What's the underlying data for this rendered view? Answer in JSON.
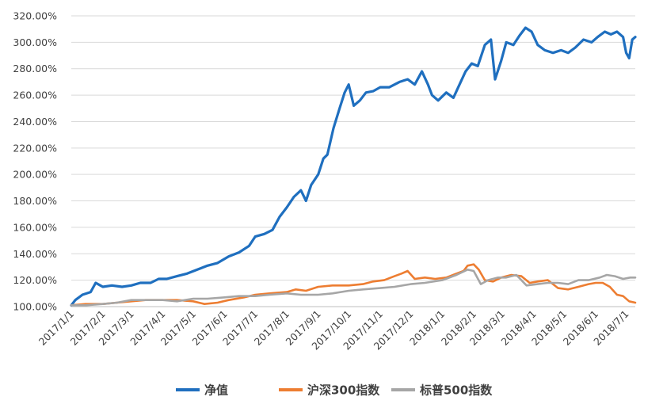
{
  "chart_data": {
    "type": "line",
    "title": "",
    "xlabel": "",
    "ylabel": "",
    "ylim": [
      100,
      320
    ],
    "y_ticks": [
      100,
      120,
      140,
      160,
      180,
      200,
      220,
      240,
      260,
      280,
      300,
      320
    ],
    "y_tick_labels": [
      "100.00%",
      "120.00%",
      "140.00%",
      "160.00%",
      "180.00%",
      "200.00%",
      "220.00%",
      "240.00%",
      "260.00%",
      "280.00%",
      "300.00%",
      "320.00%"
    ],
    "x_tick_labels": [
      "2017/1/1",
      "2017/2/1",
      "2017/3/1",
      "2017/4/1",
      "2017/5/1",
      "2017/6/1",
      "2017/7/1",
      "2017/8/1",
      "2017/9/1",
      "2017/10/1",
      "2017/11/1",
      "2017/12/1",
      "2018/1/1",
      "2018/2/1",
      "2018/3/1",
      "2018/4/1",
      "2018/5/1",
      "2018/6/1",
      "2018/7/1"
    ],
    "x_range": [
      "2017-01-01",
      "2018-07-10"
    ],
    "grid": "horizontal",
    "legend_position": "bottom",
    "series": [
      {
        "name": "净值",
        "color": "#1f6fbf",
        "points": [
          [
            "2017-01-01",
            101
          ],
          [
            "2017-01-05",
            105
          ],
          [
            "2017-01-12",
            109
          ],
          [
            "2017-01-20",
            111
          ],
          [
            "2017-01-25",
            118
          ],
          [
            "2017-02-01",
            115
          ],
          [
            "2017-02-10",
            116
          ],
          [
            "2017-02-20",
            115
          ],
          [
            "2017-03-01",
            116
          ],
          [
            "2017-03-10",
            118
          ],
          [
            "2017-03-20",
            118
          ],
          [
            "2017-03-28",
            121
          ],
          [
            "2017-04-05",
            121
          ],
          [
            "2017-04-15",
            123
          ],
          [
            "2017-04-25",
            125
          ],
          [
            "2017-05-05",
            128
          ],
          [
            "2017-05-15",
            131
          ],
          [
            "2017-05-25",
            133
          ],
          [
            "2017-06-05",
            138
          ],
          [
            "2017-06-15",
            141
          ],
          [
            "2017-06-25",
            146
          ],
          [
            "2017-07-01",
            153
          ],
          [
            "2017-07-10",
            155
          ],
          [
            "2017-07-18",
            158
          ],
          [
            "2017-07-25",
            168
          ],
          [
            "2017-08-01",
            175
          ],
          [
            "2017-08-08",
            183
          ],
          [
            "2017-08-15",
            188
          ],
          [
            "2017-08-20",
            180
          ],
          [
            "2017-08-25",
            192
          ],
          [
            "2017-09-01",
            200
          ],
          [
            "2017-09-06",
            212
          ],
          [
            "2017-09-10",
            215
          ],
          [
            "2017-09-16",
            235
          ],
          [
            "2017-09-22",
            250
          ],
          [
            "2017-09-27",
            262
          ],
          [
            "2017-10-01",
            268
          ],
          [
            "2017-10-06",
            252
          ],
          [
            "2017-10-12",
            256
          ],
          [
            "2017-10-18",
            262
          ],
          [
            "2017-10-25",
            263
          ],
          [
            "2017-11-01",
            266
          ],
          [
            "2017-11-10",
            266
          ],
          [
            "2017-11-20",
            270
          ],
          [
            "2017-11-28",
            272
          ],
          [
            "2017-12-05",
            268
          ],
          [
            "2017-12-12",
            278
          ],
          [
            "2017-12-18",
            268
          ],
          [
            "2017-12-22",
            260
          ],
          [
            "2017-12-28",
            256
          ],
          [
            "2018-01-05",
            262
          ],
          [
            "2018-01-12",
            258
          ],
          [
            "2018-01-18",
            268
          ],
          [
            "2018-01-24",
            278
          ],
          [
            "2018-01-30",
            284
          ],
          [
            "2018-02-05",
            282
          ],
          [
            "2018-02-12",
            298
          ],
          [
            "2018-02-18",
            302
          ],
          [
            "2018-02-22",
            272
          ],
          [
            "2018-02-28",
            286
          ],
          [
            "2018-03-05",
            300
          ],
          [
            "2018-03-12",
            298
          ],
          [
            "2018-03-18",
            305
          ],
          [
            "2018-03-24",
            311
          ],
          [
            "2018-03-30",
            308
          ],
          [
            "2018-04-05",
            298
          ],
          [
            "2018-04-12",
            294
          ],
          [
            "2018-04-20",
            292
          ],
          [
            "2018-04-28",
            294
          ],
          [
            "2018-05-05",
            292
          ],
          [
            "2018-05-12",
            296
          ],
          [
            "2018-05-20",
            302
          ],
          [
            "2018-05-28",
            300
          ],
          [
            "2018-06-03",
            304
          ],
          [
            "2018-06-10",
            308
          ],
          [
            "2018-06-16",
            306
          ],
          [
            "2018-06-22",
            308
          ],
          [
            "2018-06-28",
            304
          ],
          [
            "2018-07-01",
            292
          ],
          [
            "2018-07-04",
            288
          ],
          [
            "2018-07-07",
            302
          ],
          [
            "2018-07-10",
            304
          ]
        ]
      },
      {
        "name": "沪深300指数",
        "color": "#ed7d31",
        "points": [
          [
            "2017-01-01",
            101
          ],
          [
            "2017-01-15",
            102
          ],
          [
            "2017-02-01",
            102
          ],
          [
            "2017-02-15",
            103
          ],
          [
            "2017-03-01",
            104
          ],
          [
            "2017-03-15",
            105
          ],
          [
            "2017-04-01",
            105
          ],
          [
            "2017-04-15",
            105
          ],
          [
            "2017-05-01",
            104
          ],
          [
            "2017-05-12",
            102
          ],
          [
            "2017-05-25",
            103
          ],
          [
            "2017-06-05",
            105
          ],
          [
            "2017-06-20",
            107
          ],
          [
            "2017-07-01",
            109
          ],
          [
            "2017-07-15",
            110
          ],
          [
            "2017-08-01",
            111
          ],
          [
            "2017-08-10",
            113
          ],
          [
            "2017-08-20",
            112
          ],
          [
            "2017-09-01",
            115
          ],
          [
            "2017-09-15",
            116
          ],
          [
            "2017-10-01",
            116
          ],
          [
            "2017-10-15",
            117
          ],
          [
            "2017-10-25",
            119
          ],
          [
            "2017-11-05",
            120
          ],
          [
            "2017-11-15",
            123
          ],
          [
            "2017-11-22",
            125
          ],
          [
            "2017-11-28",
            127
          ],
          [
            "2017-12-05",
            121
          ],
          [
            "2017-12-15",
            122
          ],
          [
            "2017-12-25",
            121
          ],
          [
            "2018-01-05",
            122
          ],
          [
            "2018-01-15",
            125
          ],
          [
            "2018-01-22",
            127
          ],
          [
            "2018-01-26",
            131
          ],
          [
            "2018-02-01",
            132
          ],
          [
            "2018-02-06",
            128
          ],
          [
            "2018-02-12",
            120
          ],
          [
            "2018-02-20",
            119
          ],
          [
            "2018-02-28",
            122
          ],
          [
            "2018-03-10",
            124
          ],
          [
            "2018-03-20",
            123
          ],
          [
            "2018-03-28",
            118
          ],
          [
            "2018-04-05",
            119
          ],
          [
            "2018-04-15",
            120
          ],
          [
            "2018-04-25",
            114
          ],
          [
            "2018-05-05",
            113
          ],
          [
            "2018-05-15",
            115
          ],
          [
            "2018-05-25",
            117
          ],
          [
            "2018-06-01",
            118
          ],
          [
            "2018-06-08",
            118
          ],
          [
            "2018-06-15",
            115
          ],
          [
            "2018-06-22",
            109
          ],
          [
            "2018-06-28",
            108
          ],
          [
            "2018-07-04",
            104
          ],
          [
            "2018-07-10",
            103
          ]
        ]
      },
      {
        "name": "标普500指数",
        "color": "#a6a6a6",
        "points": [
          [
            "2017-01-01",
            101
          ],
          [
            "2017-01-15",
            101
          ],
          [
            "2017-02-01",
            102
          ],
          [
            "2017-02-15",
            103
          ],
          [
            "2017-03-01",
            105
          ],
          [
            "2017-03-15",
            105
          ],
          [
            "2017-04-01",
            105
          ],
          [
            "2017-04-15",
            104
          ],
          [
            "2017-05-01",
            106
          ],
          [
            "2017-05-15",
            106
          ],
          [
            "2017-06-01",
            107
          ],
          [
            "2017-06-15",
            108
          ],
          [
            "2017-07-01",
            108
          ],
          [
            "2017-07-15",
            109
          ],
          [
            "2017-08-01",
            110
          ],
          [
            "2017-08-15",
            109
          ],
          [
            "2017-09-01",
            109
          ],
          [
            "2017-09-15",
            110
          ],
          [
            "2017-10-01",
            112
          ],
          [
            "2017-10-15",
            113
          ],
          [
            "2017-11-01",
            114
          ],
          [
            "2017-11-15",
            115
          ],
          [
            "2017-12-01",
            117
          ],
          [
            "2017-12-15",
            118
          ],
          [
            "2018-01-01",
            120
          ],
          [
            "2018-01-15",
            124
          ],
          [
            "2018-01-26",
            128
          ],
          [
            "2018-02-01",
            127
          ],
          [
            "2018-02-08",
            117
          ],
          [
            "2018-02-15",
            120
          ],
          [
            "2018-02-25",
            122
          ],
          [
            "2018-03-05",
            122
          ],
          [
            "2018-03-15",
            124
          ],
          [
            "2018-03-25",
            116
          ],
          [
            "2018-04-05",
            117
          ],
          [
            "2018-04-15",
            118
          ],
          [
            "2018-04-25",
            118
          ],
          [
            "2018-05-05",
            117
          ],
          [
            "2018-05-15",
            120
          ],
          [
            "2018-05-25",
            120
          ],
          [
            "2018-06-05",
            122
          ],
          [
            "2018-06-12",
            124
          ],
          [
            "2018-06-20",
            123
          ],
          [
            "2018-06-28",
            121
          ],
          [
            "2018-07-05",
            122
          ],
          [
            "2018-07-10",
            122
          ]
        ]
      }
    ]
  }
}
